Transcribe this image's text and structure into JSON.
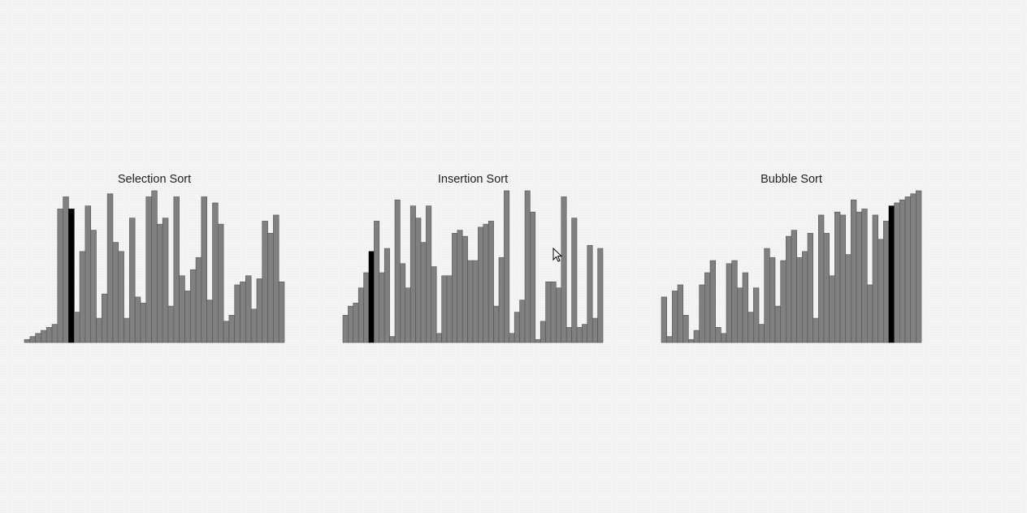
{
  "colors": {
    "bar": "#808080",
    "bar_stroke": "#555555",
    "highlight": "#000000"
  },
  "chart_data": [
    {
      "type": "bar",
      "title": "Selection Sort",
      "ylim": [
        0,
        100
      ],
      "highlight_index": 8,
      "values": [
        2,
        4,
        6,
        8,
        10,
        12,
        88,
        96,
        88,
        20,
        60,
        90,
        74,
        16,
        32,
        98,
        66,
        60,
        16,
        82,
        30,
        26,
        96,
        100,
        78,
        82,
        24,
        96,
        44,
        34,
        48,
        56,
        96,
        28,
        92,
        78,
        14,
        18,
        38,
        40,
        44,
        22,
        42,
        80,
        72,
        84,
        40
      ]
    },
    {
      "type": "bar",
      "title": "Insertion Sort",
      "ylim": [
        0,
        100
      ],
      "highlight_index": 5,
      "values": [
        18,
        24,
        26,
        36,
        46,
        60,
        80,
        46,
        62,
        4,
        94,
        52,
        36,
        90,
        82,
        66,
        90,
        50,
        6,
        44,
        44,
        72,
        74,
        70,
        54,
        54,
        76,
        78,
        80,
        24,
        56,
        100,
        6,
        20,
        28,
        100,
        86,
        2,
        14,
        40,
        40,
        36,
        96,
        10,
        82,
        10,
        12,
        64,
        16,
        62
      ]
    },
    {
      "type": "bar",
      "title": "Bubble Sort",
      "ylim": [
        0,
        100
      ],
      "highlight_index": 42,
      "values": [
        30,
        4,
        34,
        38,
        18,
        2,
        8,
        38,
        46,
        54,
        10,
        6,
        52,
        54,
        36,
        46,
        20,
        36,
        12,
        62,
        56,
        24,
        54,
        70,
        74,
        56,
        60,
        72,
        16,
        84,
        72,
        44,
        86,
        84,
        58,
        94,
        86,
        88,
        38,
        84,
        68,
        80,
        90,
        92,
        94,
        96,
        98,
        100
      ]
    }
  ]
}
